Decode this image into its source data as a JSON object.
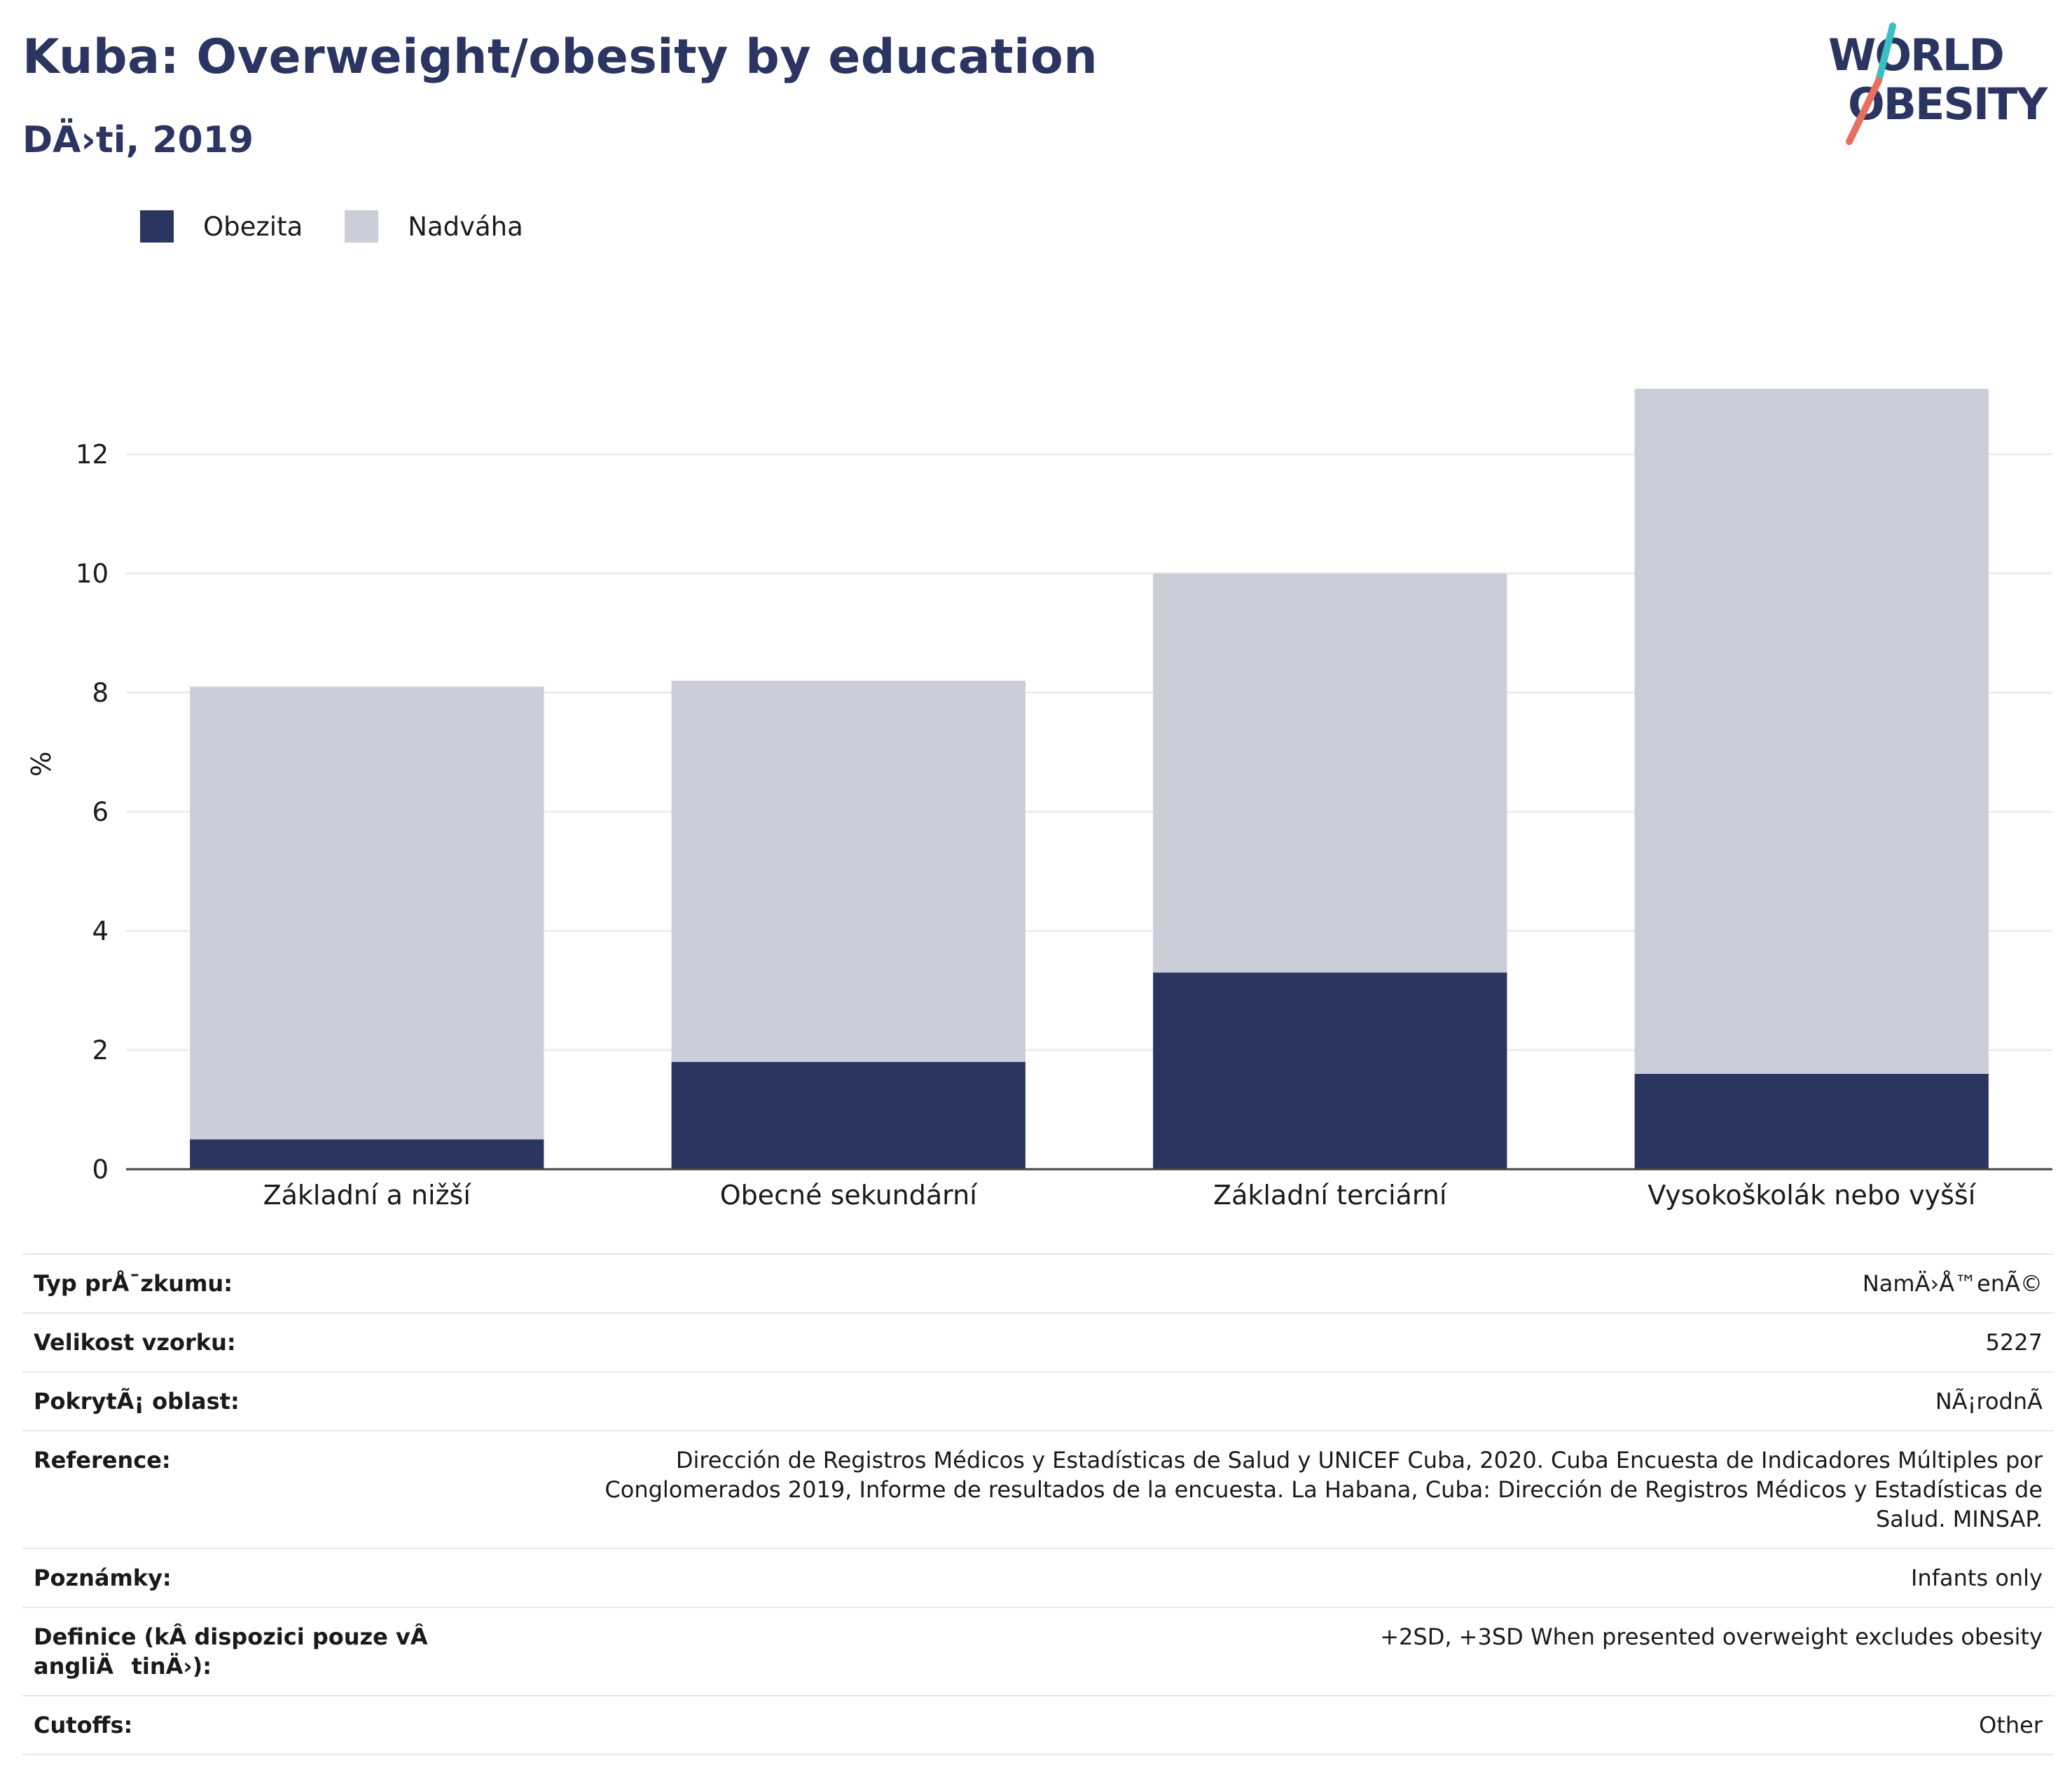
{
  "header": {
    "title": "Kuba: Overweight/obesity by education",
    "subtitle": "DÄ›ti, 2019"
  },
  "logo": {
    "line1": "WORLD",
    "line2": "OBESITY",
    "colors": {
      "text": "#2b3561",
      "slash_top": "#3bbfc4",
      "slash_bottom": "#e8705f"
    }
  },
  "colors": {
    "obesity": "#2b3561",
    "overweight": "#cbcdd8",
    "grid": "#ececf0",
    "axis": "#444444"
  },
  "chart_data": {
    "type": "bar",
    "stacked": true,
    "categories": [
      "Základní a nižší",
      "Obecné sekundární",
      "Základní terciární",
      "Vysokoškolák nebo vyšší"
    ],
    "series": [
      {
        "name": "Obezita",
        "values": [
          0.5,
          1.8,
          3.3,
          1.6
        ]
      },
      {
        "name": "Nadváha",
        "values": [
          7.6,
          6.4,
          6.7,
          11.5
        ]
      }
    ],
    "title": "Kuba: Overweight/obesity by education",
    "subtitle": "DÄ›ti, 2019",
    "xlabel": "",
    "ylabel": "%",
    "ylim": [
      0,
      14
    ],
    "yticks": [
      0,
      2,
      4,
      6,
      8,
      10,
      12
    ],
    "grid": true,
    "legend_position": "top-left"
  },
  "info": [
    {
      "label": "Typ prÅ¯zkumu:",
      "value": "NamÄ›Å™enÃ©"
    },
    {
      "label": "Velikost vzorku:",
      "value": "5227"
    },
    {
      "label": "PokrytÃ¡ oblast:",
      "value": "NÃ¡rodnÃ"
    },
    {
      "label": "Reference:",
      "value": "Dirección de Registros Médicos y Estadísticas de Salud y UNICEF Cuba, 2020. Cuba Encuesta de Indicadores Múltiples por Conglomerados 2019, Informe de resultados de la encuesta. La Habana, Cuba: Dirección de Registros Médicos y Estadísticas de Salud. MINSAP."
    },
    {
      "label": "Poznámky:",
      "value": "Infants only"
    },
    {
      "label": "Definice (kÂ dispozici pouze vÂ angliÄtinÄ›):",
      "value": "+2SD, +3SD When presented overweight excludes obesity"
    },
    {
      "label": "Cutoffs:",
      "value": "Other"
    }
  ]
}
